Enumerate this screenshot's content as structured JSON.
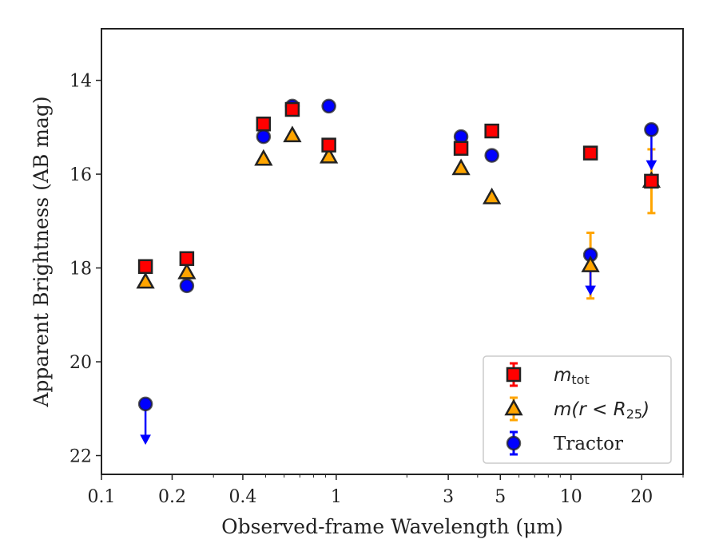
{
  "chart_data": {
    "type": "scatter",
    "xlabel": "Observed-frame Wavelength (μm)",
    "ylabel": "Apparent Brightness (AB mag)",
    "xscale": "log",
    "xlim": [
      0.1,
      30
    ],
    "ylim": [
      22.4,
      12.9
    ],
    "y_inverted": true,
    "x_ticks": [
      0.1,
      0.2,
      0.4,
      1,
      3,
      5,
      10,
      20
    ],
    "x_tick_labels": [
      "0.1",
      "0.2",
      "0.4",
      "1",
      "3",
      "5",
      "10",
      "20"
    ],
    "y_ticks": [
      14,
      16,
      18,
      20,
      22
    ],
    "y_tick_labels": [
      "14",
      "16",
      "18",
      "20",
      "22"
    ],
    "grid": false,
    "legend_position": "lower-right",
    "series": [
      {
        "name": "m_tot",
        "legend_main": "m",
        "legend_sub": "tot",
        "marker": "square",
        "fill": "#ff0000",
        "stroke": "#222222",
        "errcolor": "#ff0000",
        "points": [
          {
            "x": 0.154,
            "y": 17.97
          },
          {
            "x": 0.231,
            "y": 17.8
          },
          {
            "x": 0.49,
            "y": 14.93
          },
          {
            "x": 0.65,
            "y": 14.62
          },
          {
            "x": 0.93,
            "y": 15.38
          },
          {
            "x": 3.4,
            "y": 15.45
          },
          {
            "x": 4.6,
            "y": 15.08
          },
          {
            "x": 12.1,
            "y": 15.55
          },
          {
            "x": 22.0,
            "y": 16.15
          }
        ]
      },
      {
        "name": "m(r < R25)",
        "legend_main": "m(r < R",
        "legend_sub": "25",
        "legend_tail": ")",
        "marker": "triangle",
        "fill": "#ffa500",
        "stroke": "#222222",
        "errcolor": "#ffa500",
        "points": [
          {
            "x": 0.154,
            "y": 18.3
          },
          {
            "x": 0.231,
            "y": 18.1
          },
          {
            "x": 0.49,
            "y": 15.68
          },
          {
            "x": 0.65,
            "y": 15.18
          },
          {
            "x": 0.93,
            "y": 15.63
          },
          {
            "x": 3.4,
            "y": 15.88
          },
          {
            "x": 4.6,
            "y": 16.5
          },
          {
            "x": 12.1,
            "y": 17.95,
            "err": 0.7
          },
          {
            "x": 22.0,
            "y": 16.15,
            "err": 0.68
          }
        ]
      },
      {
        "name": "Tractor",
        "marker": "circle",
        "fill": "#0000ff",
        "stroke": "#222222",
        "errcolor": "#0000ff",
        "points": [
          {
            "x": 0.154,
            "y": 20.9,
            "upper_limit": true
          },
          {
            "x": 0.231,
            "y": 18.38
          },
          {
            "x": 0.49,
            "y": 15.2
          },
          {
            "x": 0.65,
            "y": 14.55
          },
          {
            "x": 0.93,
            "y": 14.55
          },
          {
            "x": 3.4,
            "y": 15.2
          },
          {
            "x": 4.6,
            "y": 15.6
          },
          {
            "x": 12.1,
            "y": 17.72,
            "upper_limit": true
          },
          {
            "x": 22.0,
            "y": 15.05,
            "upper_limit": true
          }
        ]
      }
    ]
  }
}
